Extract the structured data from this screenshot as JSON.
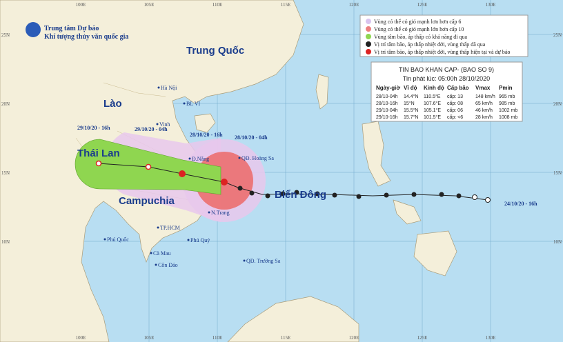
{
  "header": {
    "org1": "Trung tâm Dự báo",
    "org2": "Khí tượng thủy văn quốc gia"
  },
  "legend": [
    "Vùng có thể có gió mạnh lơn hơn cấp 6",
    "Vùng có thể có gió mạnh lớn hơn cấp 10",
    "Vùng tâm bão, áp thấp có khả năng đi qua",
    "Vị trí tâm bão, áp thấp nhiệt đới, vùng thấp đã qua",
    "Vị trí tâm bão, áp thấp nhiệt đới, vùng thấp hiện tại và dự báo"
  ],
  "info": {
    "title": "TIN BAO KHAN CAP- (BAO SO 9)",
    "issued": "Tin phát lúc: 05:00h 28/10/2020",
    "columns": [
      "Ngày-giờ",
      "Vĩ độ",
      "Kinh độ",
      "Cấp bão",
      "Vmax",
      "Pmin"
    ],
    "rows": [
      [
        "28/10-04h",
        "14.4°N",
        "110.5°E",
        "cấp: 13",
        "148 km/h",
        "965 mb"
      ],
      [
        "28/10-16h",
        "15°N",
        "107.6°E",
        "cấp: 08",
        "65 km/h",
        "985 mb"
      ],
      [
        "29/10-04h",
        "15.5°N",
        "105.1°E",
        "cấp: 06",
        "46 km/h",
        "1002 mb"
      ],
      [
        "29/10-16h",
        "15.7°N",
        "101.5°E",
        "cấp: <6",
        "28 km/h",
        "1008 mb"
      ]
    ]
  },
  "countries": [
    "Trung Quốc",
    "Lào",
    "Thái Lan",
    "Campuchia",
    "Biển Đông"
  ],
  "places": [
    "Hà Nội",
    "BL VI",
    "Vinh",
    "Đ.Nẵng",
    "QĐ. Hoàng Sa",
    "N.Trang",
    "TP.HCM",
    "Phú Quốc",
    "Phú Quý",
    "Cà Mau",
    "Côn Đảo",
    "QĐ. Trường Sa"
  ],
  "times": [
    "29/10/20 - 16h",
    "29/10/20 - 04h",
    "28/10/20 - 16h",
    "28/10/20 - 04h",
    "24/10/20 - 16h"
  ],
  "lon_ticks": [
    {
      "value": 100,
      "label": "100E"
    },
    {
      "value": 105,
      "label": "105E"
    },
    {
      "value": 110,
      "label": "110E"
    },
    {
      "value": 115,
      "label": "115E"
    },
    {
      "value": 120,
      "label": "120E"
    },
    {
      "value": 125,
      "label": "125E"
    },
    {
      "value": 130,
      "label": "130E"
    }
  ],
  "lat_ticks": [
    {
      "value": 25,
      "label": "25N"
    },
    {
      "value": 20,
      "label": "20N"
    },
    {
      "value": 15,
      "label": "15N"
    },
    {
      "value": 10,
      "label": "10N"
    }
  ]
}
